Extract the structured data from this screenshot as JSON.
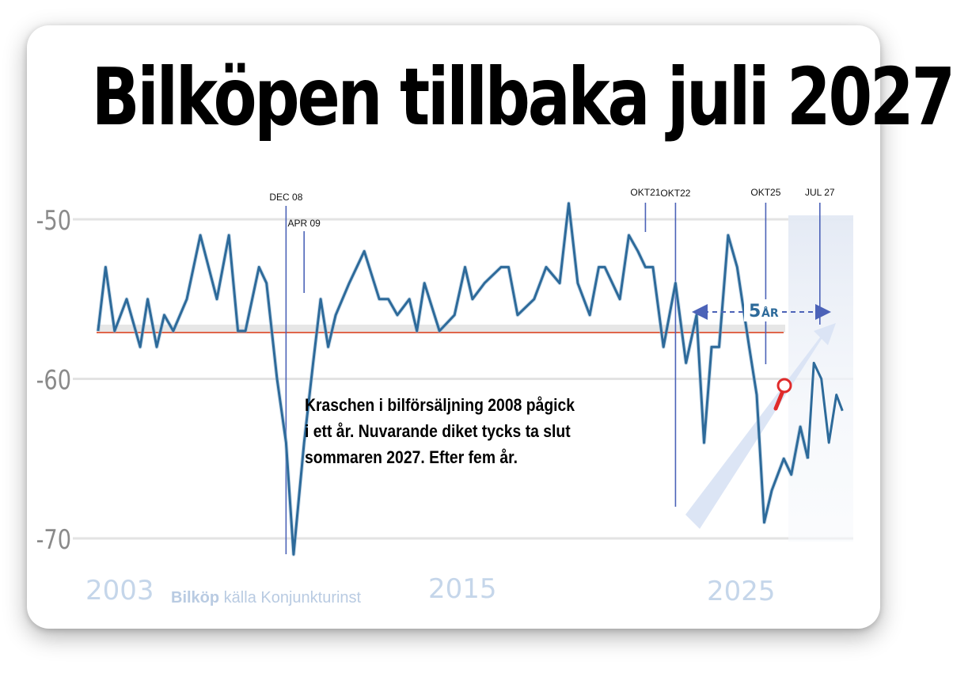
{
  "title": "Bilköpen tillbaka juli 2027",
  "annotation_lines": [
    "Kraschen i bilförsäljning 2008 pågick",
    "i ett år. Nuvarande diket tycks ta slut",
    "sommaren 2027. Efter fem år."
  ],
  "source": {
    "strong": "Bilköp",
    "rest": " källa Konjunkturinst"
  },
  "year_labels": [
    "2003",
    "2015",
    "2025"
  ],
  "span_label": {
    "number": "5",
    "unit": "ÅR"
  },
  "colors": {
    "series": "#2d6a9a",
    "reference": "#e0664a",
    "markers": "#4c63b8",
    "arrow": "#d8e2f4",
    "highlight": "#e02b2b",
    "gridline": "#e3e3e3",
    "year_text": "#c5d6ea"
  },
  "chart_data": {
    "type": "line",
    "title": "Bilköpen tillbaka juli 2027",
    "xlabel": "",
    "ylabel": "",
    "yticks": [
      -50,
      -60,
      -70
    ],
    "ylim": [
      -72,
      -48
    ],
    "x_range": [
      2002.75,
      2027.7
    ],
    "reference_value": -57,
    "grid": true,
    "series": [
      {
        "x": [
          2002.8,
          2003.05,
          2003.35,
          2003.75,
          2004.2,
          2004.45,
          2004.75,
          2005.0,
          2005.3,
          2005.75,
          2006.2,
          2006.75,
          2007.15,
          2007.45,
          2007.7,
          2008.15,
          2008.4,
          2008.75,
          2009.05,
          2009.3,
          2009.65,
          2009.95,
          2010.2,
          2010.45,
          2010.7,
          2011.15,
          2011.65,
          2012.15,
          2012.45,
          2012.75,
          2013.15,
          2013.4,
          2013.65,
          2014.15,
          2014.65,
          2015.0,
          2015.25,
          2015.65,
          2016.2,
          2016.45,
          2016.75,
          2017.3,
          2017.7,
          2018.15,
          2018.45,
          2018.75,
          2019.15,
          2019.45,
          2019.65,
          2020.15,
          2020.45,
          2020.75,
          2021.0,
          2021.25,
          2021.6,
          2022.0,
          2022.35,
          2022.7,
          2022.95,
          2023.2,
          2023.45,
          2023.75,
          2024.05,
          2024.45,
          2024.7,
          2024.95,
          2025.2,
          2025.6,
          2025.85,
          2026.15,
          2026.4
        ],
        "y": [
          -57,
          -53,
          -57,
          -55,
          -58,
          -55,
          -58,
          -56,
          -57,
          -55,
          -51,
          -55,
          -51,
          -57,
          -57,
          -53,
          -54,
          -60,
          -64,
          -71,
          -64,
          -59,
          -55,
          -58,
          -56,
          -54,
          -52,
          -55,
          -55,
          -56,
          -55,
          -57,
          -54,
          -57,
          -56,
          -53,
          -55,
          -54,
          -53,
          -53,
          -56,
          -55,
          -53,
          -54,
          -49,
          -54,
          -56,
          -53,
          -53,
          -55,
          -51,
          -52,
          -53,
          -53,
          -58,
          -54,
          -59,
          -56,
          -64,
          -58,
          -58,
          -51,
          -53,
          -58,
          -61,
          -69,
          -67,
          -65,
          -66,
          -63,
          -65
        ]
      }
    ],
    "series_tail": {
      "x": [
        2026.4,
        2026.6,
        2026.85,
        2027.1,
        2027.35,
        2027.55
      ],
      "y": [
        -65,
        -59,
        -60,
        -64,
        -61,
        -62
      ]
    },
    "event_markers": [
      {
        "label": "DEC 08",
        "x": 2009.05
      },
      {
        "label": "APR 09",
        "x": 2009.65
      },
      {
        "label": "OKT21",
        "x": 2021.0
      },
      {
        "label": "OKT22",
        "x": 2022.0
      },
      {
        "label": "OKT25",
        "x": 2025.0
      },
      {
        "label": "JUL 27",
        "x": 2026.8
      }
    ]
  }
}
